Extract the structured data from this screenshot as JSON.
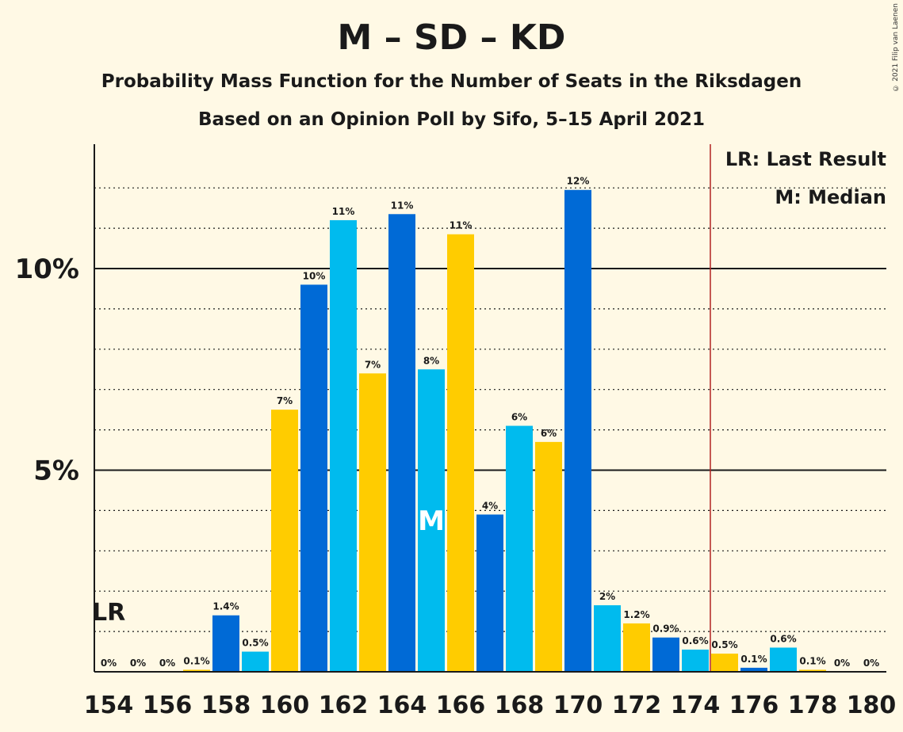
{
  "header": {
    "title": "M – SD – KD",
    "subtitle": "Probability Mass Function for the Number of Seats in the Riksdagen",
    "subtitle2": "Based on an Opinion Poll by Sifo, 5–15 April 2021",
    "copyright": "© 2021 Filip van Laenen"
  },
  "legend": {
    "lr": "LR: Last Result",
    "median": "M: Median",
    "position": "top-right"
  },
  "colors": {
    "dark_blue": "#006ad6",
    "light_blue": "#00bbee",
    "yellow": "#ffcc00",
    "last_result_line": "#b22222",
    "background": "#fff9e5"
  },
  "chart_data": {
    "type": "bar",
    "title": "M – SD – KD",
    "xlabel": "",
    "ylabel": "",
    "ylim": [
      0,
      13
    ],
    "y_ticks": [
      {
        "value": 5,
        "label": "5%"
      },
      {
        "value": 10,
        "label": "10%"
      }
    ],
    "x_tick_labels": [
      "154",
      "156",
      "158",
      "160",
      "162",
      "164",
      "166",
      "168",
      "170",
      "172",
      "174",
      "176",
      "178",
      "180"
    ],
    "grid": "dotted every 1%, solid at 5% and 10%",
    "last_result": 175,
    "last_result_marker": "LR",
    "median": 165,
    "median_marker": "M",
    "bars": [
      {
        "x": 154,
        "value": 0.0,
        "label": "0%",
        "color": "yellow"
      },
      {
        "x": 155,
        "value": 0.0,
        "label": "0%",
        "color": "dark_blue"
      },
      {
        "x": 156,
        "value": 0.0,
        "label": "0%",
        "color": "light_blue"
      },
      {
        "x": 157,
        "value": 0.05,
        "label": "0.1%",
        "color": "yellow"
      },
      {
        "x": 158,
        "value": 1.4,
        "label": "1.4%",
        "color": "dark_blue"
      },
      {
        "x": 159,
        "value": 0.5,
        "label": "0.5%",
        "color": "light_blue"
      },
      {
        "x": 160,
        "value": 6.5,
        "label": "7%",
        "color": "yellow"
      },
      {
        "x": 161,
        "value": 9.6,
        "label": "10%",
        "color": "dark_blue"
      },
      {
        "x": 162,
        "value": 11.2,
        "label": "11%",
        "color": "light_blue"
      },
      {
        "x": 163,
        "value": 7.4,
        "label": "7%",
        "color": "yellow"
      },
      {
        "x": 164,
        "value": 11.35,
        "label": "11%",
        "color": "dark_blue"
      },
      {
        "x": 165,
        "value": 7.5,
        "label": "8%",
        "color": "light_blue"
      },
      {
        "x": 166,
        "value": 10.85,
        "label": "11%",
        "color": "yellow"
      },
      {
        "x": 167,
        "value": 3.9,
        "label": "4%",
        "color": "dark_blue"
      },
      {
        "x": 168,
        "value": 6.1,
        "label": "6%",
        "color": "light_blue"
      },
      {
        "x": 169,
        "value": 5.7,
        "label": "6%",
        "color": "yellow"
      },
      {
        "x": 170,
        "value": 11.95,
        "label": "12%",
        "color": "dark_blue"
      },
      {
        "x": 171,
        "value": 1.65,
        "label": "2%",
        "color": "light_blue"
      },
      {
        "x": 172,
        "value": 1.2,
        "label": "1.2%",
        "color": "yellow"
      },
      {
        "x": 173,
        "value": 0.85,
        "label": "0.9%",
        "color": "dark_blue"
      },
      {
        "x": 174,
        "value": 0.55,
        "label": "0.6%",
        "color": "light_blue"
      },
      {
        "x": 175,
        "value": 0.45,
        "label": "0.5%",
        "color": "yellow"
      },
      {
        "x": 176,
        "value": 0.1,
        "label": "0.1%",
        "color": "dark_blue"
      },
      {
        "x": 177,
        "value": 0.6,
        "label": "0.6%",
        "color": "light_blue"
      },
      {
        "x": 178,
        "value": 0.05,
        "label": "0.1%",
        "color": "yellow"
      },
      {
        "x": 179,
        "value": 0.0,
        "label": "0%",
        "color": "dark_blue"
      },
      {
        "x": 180,
        "value": 0.0,
        "label": "0%",
        "color": "light_blue"
      }
    ]
  }
}
